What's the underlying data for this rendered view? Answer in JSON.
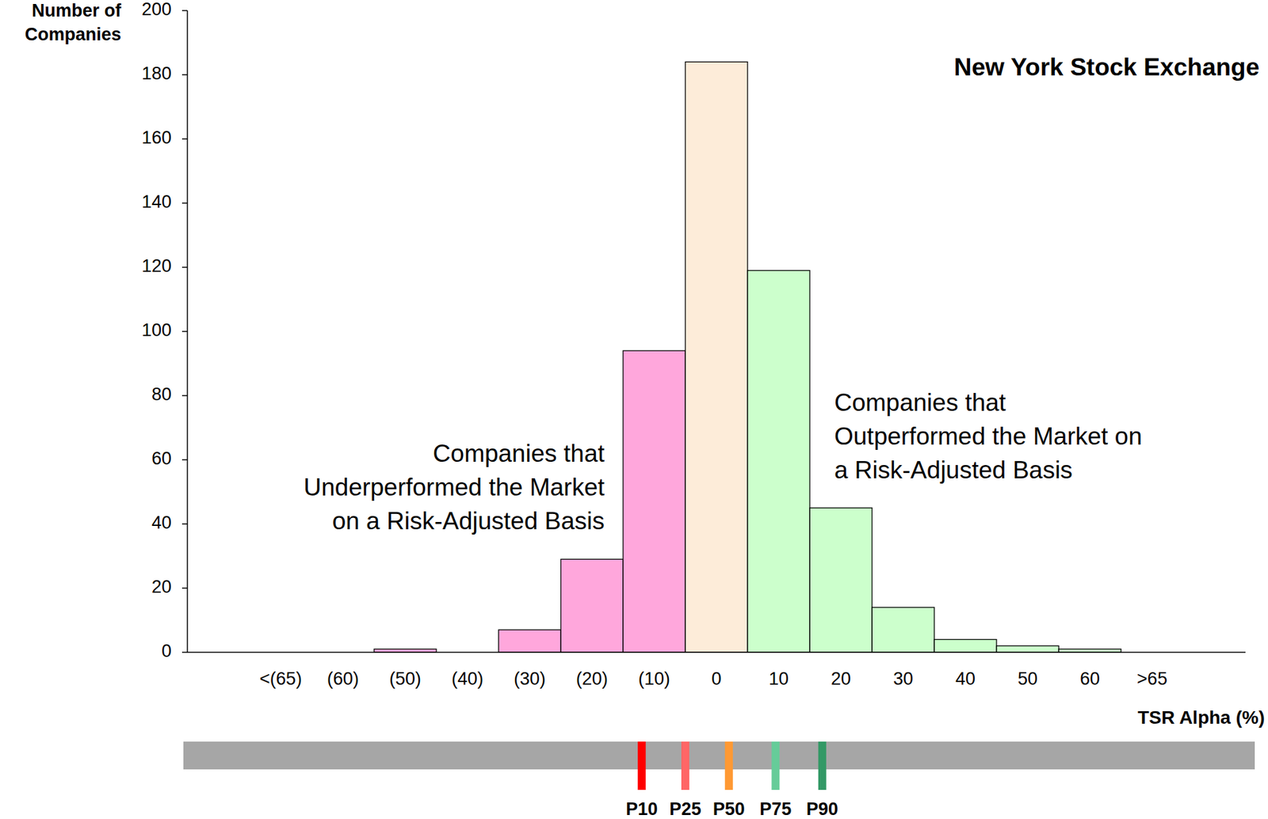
{
  "chart_data": {
    "type": "bar",
    "title": "New York Stock Exchange",
    "ylabel": [
      "Number of",
      "Companies"
    ],
    "xlabel": "TSR Alpha (%)",
    "x": [
      -70,
      -60,
      -50,
      -40,
      -30,
      -20,
      -10,
      0,
      10,
      20,
      30,
      40,
      50,
      60,
      70
    ],
    "values": [
      0,
      0,
      1,
      0,
      7,
      29,
      94,
      184,
      119,
      45,
      14,
      4,
      2,
      1,
      0
    ],
    "colors": [
      "#ffa7dc",
      "#ffa7dc",
      "#ffa7dc",
      "#ffa7dc",
      "#ffa7dc",
      "#ffa7dc",
      "#ffa7dc",
      "#fdecd9",
      "#ccffcc",
      "#ccffcc",
      "#ccffcc",
      "#ccffcc",
      "#ccffcc",
      "#ccffcc",
      "#ccffcc"
    ],
    "xlim": [
      -85,
      85
    ],
    "xticks": [
      {
        "value": -70,
        "label": "<(65)"
      },
      {
        "value": -60,
        "label": "(60)"
      },
      {
        "value": -50,
        "label": "(50)"
      },
      {
        "value": -40,
        "label": "(40)"
      },
      {
        "value": -30,
        "label": "(30)"
      },
      {
        "value": -20,
        "label": "(20)"
      },
      {
        "value": -10,
        "label": "(10)"
      },
      0,
      10,
      20,
      30,
      40,
      50,
      60,
      {
        "value": 70,
        "label": ">65"
      }
    ],
    "ylim": [
      0,
      200
    ],
    "yticks": [
      0,
      20,
      40,
      60,
      80,
      100,
      120,
      140,
      160,
      180,
      200
    ],
    "grid": false,
    "annotations": [
      [
        "Companies that",
        "Underperformed the Market",
        "on a Risk-Adjusted Basis"
      ],
      [
        "Companies that",
        "Outperformed the Market on",
        "a Risk-Adjusted Basis"
      ]
    ],
    "percentiles": {
      "labels": [
        "P10",
        "P25",
        "P50",
        "P75",
        "P90"
      ],
      "values": [
        -12,
        -5,
        2,
        9.5,
        17
      ],
      "colors": [
        "#ff0000",
        "#ff6666",
        "#ff9933",
        "#66cc99",
        "#339966"
      ]
    }
  }
}
